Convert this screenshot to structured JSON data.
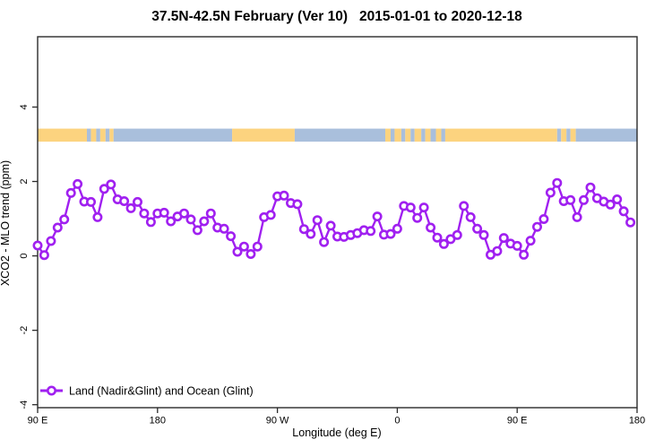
{
  "title": "37.5N-42.5N February (Ver 10)   2015-01-01 to 2020-12-18",
  "legend": {
    "label": "Land (Nadir&Glint) and Ocean (Glint)"
  },
  "colors": {
    "series": "#A020F0",
    "land_band": "#FCD37F",
    "ocean_band": "#A9BFDC",
    "frame": "#2b2b2b",
    "text": "#000000",
    "background": "#ffffff"
  },
  "chart_data": {
    "type": "line",
    "title": "37.5N-42.5N February (Ver 10)   2015-01-01 to 2020-12-18",
    "xlabel": "Longitude (deg E)",
    "ylabel": "XCO2 - MLO trend (ppm)",
    "grid": false,
    "legend_position": "bottom-left",
    "x_axis": {
      "tick_labels": [
        "90 E",
        "180",
        "90 W",
        "0",
        "90 E",
        "180"
      ],
      "tick_positions_deg": [
        0,
        90,
        180,
        270,
        360,
        450
      ],
      "span_deg": 450,
      "wraps_globe": true
    },
    "y_axis": {
      "ticks": [
        -4,
        -2,
        0,
        2,
        4
      ],
      "ylim": [
        -4.08,
        5.89
      ]
    },
    "series": [
      {
        "name": "Land (Nadir&Glint) and Ocean (Glint)",
        "marker": "open-circle",
        "color": "#A020F0",
        "x_start_deg_east": 90,
        "x_step_deg": 5,
        "values": [
          0.28,
          0.02,
          0.4,
          0.76,
          0.98,
          1.69,
          1.93,
          1.46,
          1.45,
          1.04,
          1.8,
          1.92,
          1.52,
          1.47,
          1.28,
          1.45,
          1.14,
          0.91,
          1.14,
          1.16,
          0.93,
          1.06,
          1.14,
          0.98,
          0.69,
          0.93,
          1.14,
          0.76,
          0.73,
          0.53,
          0.11,
          0.25,
          0.05,
          0.25,
          1.04,
          1.1,
          1.6,
          1.62,
          1.42,
          1.39,
          0.72,
          0.59,
          0.96,
          0.37,
          0.81,
          0.52,
          0.51,
          0.56,
          0.61,
          0.69,
          0.67,
          1.06,
          0.57,
          0.59,
          0.73,
          1.34,
          1.3,
          1.02,
          1.3,
          0.76,
          0.49,
          0.32,
          0.45,
          0.56,
          1.34,
          1.04,
          0.73,
          0.56,
          0.03,
          0.13,
          0.48,
          0.33,
          0.27,
          0.03,
          0.41,
          0.78,
          0.99,
          1.7,
          1.96,
          1.47,
          1.5,
          1.04,
          1.5,
          1.84,
          1.55,
          1.46,
          1.38,
          1.52,
          1.2,
          0.9
        ]
      }
    ],
    "surface_band": {
      "description": "land/ocean strip drawn across plot near y=3.2",
      "value_low": 3.07,
      "value_high": 3.42,
      "land_color": "#FCD37F",
      "ocean_color": "#A9BFDC",
      "segments_deg": [
        {
          "from": 0,
          "to": 37,
          "type": "land"
        },
        {
          "from": 37,
          "to": 40,
          "type": "ocean"
        },
        {
          "from": 40,
          "to": 44,
          "type": "land"
        },
        {
          "from": 44,
          "to": 47,
          "type": "ocean"
        },
        {
          "from": 47,
          "to": 51,
          "type": "land"
        },
        {
          "from": 51,
          "to": 54,
          "type": "ocean"
        },
        {
          "from": 54,
          "to": 57,
          "type": "land"
        },
        {
          "from": 57,
          "to": 146,
          "type": "ocean"
        },
        {
          "from": 146,
          "to": 193,
          "type": "land"
        },
        {
          "from": 193,
          "to": 261,
          "type": "ocean"
        },
        {
          "from": 261,
          "to": 265,
          "type": "land"
        },
        {
          "from": 265,
          "to": 268,
          "type": "ocean"
        },
        {
          "from": 268,
          "to": 273,
          "type": "land"
        },
        {
          "from": 273,
          "to": 276,
          "type": "ocean"
        },
        {
          "from": 276,
          "to": 280,
          "type": "land"
        },
        {
          "from": 280,
          "to": 283,
          "type": "ocean"
        },
        {
          "from": 283,
          "to": 288,
          "type": "land"
        },
        {
          "from": 288,
          "to": 291,
          "type": "ocean"
        },
        {
          "from": 291,
          "to": 295,
          "type": "land"
        },
        {
          "from": 295,
          "to": 299,
          "type": "ocean"
        },
        {
          "from": 299,
          "to": 303,
          "type": "land"
        },
        {
          "from": 303,
          "to": 306,
          "type": "ocean"
        },
        {
          "from": 306,
          "to": 390,
          "type": "land"
        },
        {
          "from": 390,
          "to": 393,
          "type": "ocean"
        },
        {
          "from": 393,
          "to": 397,
          "type": "land"
        },
        {
          "from": 397,
          "to": 400,
          "type": "ocean"
        },
        {
          "from": 400,
          "to": 404,
          "type": "land"
        },
        {
          "from": 404,
          "to": 450,
          "type": "ocean"
        }
      ]
    }
  }
}
